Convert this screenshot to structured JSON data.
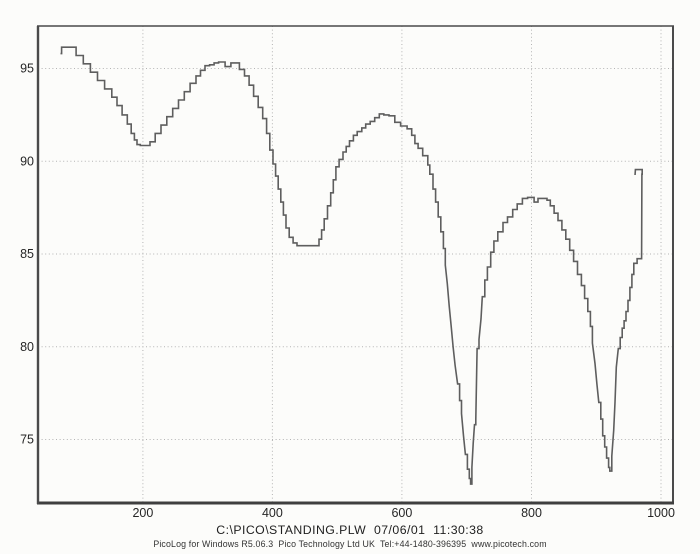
{
  "footer": {
    "line1": "C:\\PICO\\STANDING.PLW  07/06/01  11:30:38",
    "line2": "PicoLog for Windows R5.06.3  Pico Technology Ltd UK  Tel:+44-1480-396395  www.picotech.com"
  },
  "chart_data": {
    "type": "line",
    "title": "",
    "xlabel": "",
    "ylabel": "",
    "legend": "none",
    "grid": "dotted",
    "xlim": [
      38.1,
      1018.5
    ],
    "ylim": [
      71.58,
      97.29
    ],
    "x_ticks": [
      200,
      400,
      600,
      800,
      1000
    ],
    "y_ticks": [
      75,
      80,
      85,
      90,
      95
    ],
    "line_color": "#5e5e5e",
    "grid_color": "#b4b4b4",
    "border_color": "#4a4a4a",
    "step_threshold": 0.95,
    "points": [
      [
        74,
        95.8
      ],
      [
        74.5,
        96.15
      ],
      [
        86,
        96.15
      ],
      [
        97,
        95.7
      ],
      [
        108,
        95.25
      ],
      [
        119,
        94.8
      ],
      [
        130,
        94.35
      ],
      [
        141,
        93.9
      ],
      [
        152,
        93.45
      ],
      [
        160,
        93.0
      ],
      [
        168,
        92.5
      ],
      [
        176,
        92.0
      ],
      [
        182,
        91.5
      ],
      [
        187,
        91.15
      ],
      [
        191,
        90.9
      ],
      [
        196,
        90.85
      ],
      [
        208,
        90.85
      ],
      [
        211,
        91.05
      ],
      [
        219,
        91.5
      ],
      [
        228,
        91.95
      ],
      [
        237,
        92.4
      ],
      [
        246,
        92.85
      ],
      [
        255,
        93.3
      ],
      [
        264,
        93.75
      ],
      [
        273,
        94.2
      ],
      [
        282,
        94.6
      ],
      [
        289,
        94.9
      ],
      [
        296,
        95.15
      ],
      [
        303,
        95.2
      ],
      [
        310,
        95.3
      ],
      [
        317,
        95.35
      ],
      [
        323,
        95.35
      ],
      [
        327,
        95.1
      ],
      [
        332,
        95.1
      ],
      [
        336,
        95.3
      ],
      [
        343,
        95.3
      ],
      [
        349,
        94.95
      ],
      [
        357,
        94.6
      ],
      [
        364,
        94.1
      ],
      [
        371,
        93.5
      ],
      [
        378,
        92.9
      ],
      [
        385,
        92.3
      ],
      [
        391,
        91.5
      ],
      [
        396,
        90.6
      ],
      [
        401,
        89.85
      ],
      [
        405,
        89.2
      ],
      [
        409,
        88.5
      ],
      [
        413,
        87.8
      ],
      [
        417,
        87.1
      ],
      [
        421,
        86.4
      ],
      [
        426,
        85.9
      ],
      [
        432,
        85.6
      ],
      [
        438,
        85.45
      ],
      [
        468,
        85.45
      ],
      [
        472,
        85.8
      ],
      [
        476,
        86.3
      ],
      [
        480,
        86.9
      ],
      [
        485,
        87.6
      ],
      [
        490,
        88.3
      ],
      [
        494,
        89.0
      ],
      [
        498,
        89.7
      ],
      [
        503,
        90.1
      ],
      [
        509,
        90.5
      ],
      [
        514,
        90.8
      ],
      [
        519,
        91.1
      ],
      [
        525,
        91.4
      ],
      [
        531,
        91.6
      ],
      [
        538,
        91.8
      ],
      [
        544,
        92.0
      ],
      [
        551,
        92.15
      ],
      [
        558,
        92.35
      ],
      [
        565,
        92.55
      ],
      [
        572,
        92.5
      ],
      [
        580,
        92.45
      ],
      [
        589,
        92.1
      ],
      [
        598,
        91.9
      ],
      [
        608,
        91.75
      ],
      [
        615,
        91.4
      ],
      [
        620,
        90.95
      ],
      [
        625,
        90.7
      ],
      [
        632,
        90.3
      ],
      [
        640,
        89.8
      ],
      [
        643,
        89.3
      ],
      [
        648,
        88.5
      ],
      [
        652,
        87.8
      ],
      [
        656,
        87.0
      ],
      [
        660,
        86.2
      ],
      [
        664,
        85.3
      ],
      [
        667,
        84.4
      ],
      [
        670,
        83.4
      ],
      [
        673,
        82.2
      ],
      [
        676,
        81.1
      ],
      [
        679,
        80.0
      ],
      [
        682,
        79.0
      ],
      [
        686,
        78.0
      ],
      [
        689,
        77.1
      ],
      [
        692,
        76.4
      ],
      [
        695,
        75.2
      ],
      [
        698,
        74.2
      ],
      [
        701,
        73.4
      ],
      [
        704,
        72.9
      ],
      [
        706,
        72.6
      ],
      [
        708,
        73.5
      ],
      [
        710,
        74.8
      ],
      [
        712,
        75.8
      ],
      [
        714,
        76.1
      ],
      [
        716,
        79.9
      ],
      [
        719,
        80.4
      ],
      [
        722,
        81.5
      ],
      [
        724,
        82.7
      ],
      [
        728,
        83.6
      ],
      [
        732,
        84.3
      ],
      [
        737,
        85.1
      ],
      [
        742,
        85.7
      ],
      [
        748,
        86.2
      ],
      [
        756,
        86.7
      ],
      [
        763,
        87.0
      ],
      [
        771,
        87.4
      ],
      [
        778,
        87.7
      ],
      [
        786,
        88.0
      ],
      [
        794,
        88.05
      ],
      [
        801,
        88.05
      ],
      [
        804,
        87.8
      ],
      [
        808,
        87.8
      ],
      [
        810,
        88.0
      ],
      [
        818,
        88.0
      ],
      [
        824,
        87.9
      ],
      [
        829,
        87.6
      ],
      [
        835,
        87.2
      ],
      [
        841,
        86.8
      ],
      [
        847,
        86.3
      ],
      [
        853,
        85.8
      ],
      [
        859,
        85.2
      ],
      [
        865,
        84.6
      ],
      [
        871,
        83.9
      ],
      [
        877,
        83.3
      ],
      [
        882,
        82.6
      ],
      [
        887,
        81.9
      ],
      [
        891,
        81.1
      ],
      [
        894,
        80.2
      ],
      [
        898,
        79.1
      ],
      [
        901,
        78.0
      ],
      [
        904,
        77.0
      ],
      [
        907,
        76.1
      ],
      [
        910,
        75.2
      ],
      [
        913,
        74.6
      ],
      [
        916,
        74.0
      ],
      [
        919,
        73.5
      ],
      [
        921,
        73.3
      ],
      [
        924,
        74.1
      ],
      [
        927,
        75.5
      ],
      [
        929,
        77.0
      ],
      [
        931,
        78.9
      ],
      [
        934,
        79.9
      ],
      [
        937,
        80.5
      ],
      [
        940,
        81.0
      ],
      [
        943,
        81.4
      ],
      [
        946,
        81.9
      ],
      [
        949,
        82.5
      ],
      [
        952,
        83.2
      ],
      [
        955,
        83.9
      ],
      [
        958,
        84.5
      ],
      [
        963,
        84.75
      ],
      [
        970,
        84.8
      ],
      [
        970.5,
        89.3
      ],
      [
        971,
        89.55
      ],
      [
        960.5,
        89.55
      ],
      [
        960,
        89.3
      ]
    ]
  }
}
